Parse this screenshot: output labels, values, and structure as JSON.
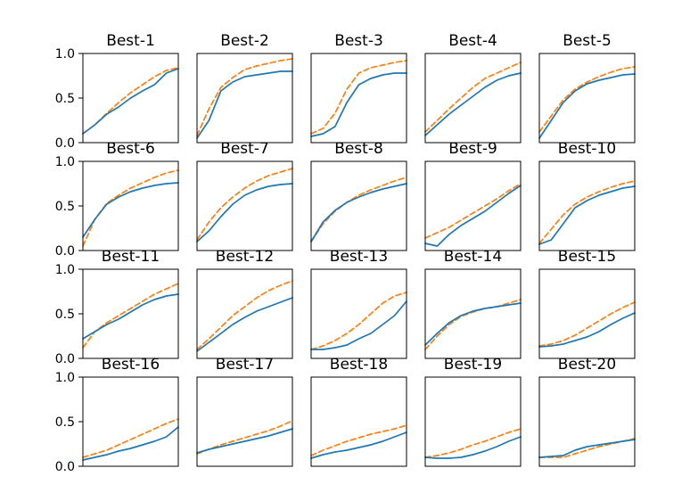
{
  "chart_data": {
    "type": "line",
    "layout": "small-multiples 4x5 grid",
    "x_axis": "hidden (no ticks or labels)",
    "ylim": [
      0,
      1
    ],
    "yticks": [
      "0.0",
      "0.5",
      "1.0"
    ],
    "grid": false,
    "legend": "none",
    "series_styles": [
      {
        "style": "solid",
        "color": "#1f77b4"
      },
      {
        "style": "dashed",
        "color": "#ff7f0e"
      }
    ],
    "panels": [
      {
        "title": "Best-1",
        "solid": [
          0.1,
          0.2,
          0.32,
          0.4,
          0.5,
          0.58,
          0.65,
          0.78,
          0.83
        ],
        "dashed": [
          0.1,
          0.2,
          0.33,
          0.45,
          0.56,
          0.65,
          0.74,
          0.81,
          0.84
        ]
      },
      {
        "title": "Best-2",
        "solid": [
          0.05,
          0.25,
          0.58,
          0.68,
          0.74,
          0.76,
          0.78,
          0.8,
          0.8
        ],
        "dashed": [
          0.08,
          0.38,
          0.62,
          0.73,
          0.82,
          0.86,
          0.89,
          0.92,
          0.94
        ]
      },
      {
        "title": "Best-3",
        "solid": [
          0.07,
          0.1,
          0.18,
          0.45,
          0.65,
          0.72,
          0.76,
          0.78,
          0.78
        ],
        "dashed": [
          0.1,
          0.16,
          0.33,
          0.6,
          0.78,
          0.84,
          0.87,
          0.9,
          0.92
        ]
      },
      {
        "title": "Best-4",
        "solid": [
          0.08,
          0.2,
          0.32,
          0.42,
          0.52,
          0.62,
          0.7,
          0.75,
          0.78
        ],
        "dashed": [
          0.12,
          0.25,
          0.38,
          0.5,
          0.62,
          0.72,
          0.78,
          0.84,
          0.9
        ]
      },
      {
        "title": "Best-5",
        "solid": [
          0.05,
          0.25,
          0.45,
          0.58,
          0.66,
          0.7,
          0.73,
          0.76,
          0.77
        ],
        "dashed": [
          0.12,
          0.3,
          0.48,
          0.6,
          0.68,
          0.74,
          0.79,
          0.83,
          0.85
        ]
      },
      {
        "title": "Best-6",
        "solid": [
          0.15,
          0.35,
          0.52,
          0.6,
          0.66,
          0.7,
          0.73,
          0.75,
          0.76
        ],
        "dashed": [
          0.05,
          0.35,
          0.53,
          0.62,
          0.7,
          0.76,
          0.82,
          0.87,
          0.9
        ]
      },
      {
        "title": "Best-7",
        "solid": [
          0.1,
          0.22,
          0.38,
          0.52,
          0.62,
          0.68,
          0.72,
          0.74,
          0.75
        ],
        "dashed": [
          0.12,
          0.32,
          0.48,
          0.6,
          0.7,
          0.78,
          0.84,
          0.88,
          0.92
        ]
      },
      {
        "title": "Best-8",
        "solid": [
          0.1,
          0.32,
          0.45,
          0.54,
          0.6,
          0.65,
          0.69,
          0.72,
          0.75
        ],
        "dashed": [
          0.1,
          0.3,
          0.44,
          0.54,
          0.62,
          0.68,
          0.73,
          0.78,
          0.82
        ]
      },
      {
        "title": "Best-9",
        "solid": [
          0.08,
          0.05,
          0.18,
          0.28,
          0.36,
          0.44,
          0.54,
          0.64,
          0.73
        ],
        "dashed": [
          0.14,
          0.2,
          0.26,
          0.34,
          0.42,
          0.5,
          0.58,
          0.67,
          0.75
        ]
      },
      {
        "title": "Best-10",
        "solid": [
          0.07,
          0.12,
          0.3,
          0.48,
          0.56,
          0.62,
          0.66,
          0.7,
          0.72
        ],
        "dashed": [
          0.08,
          0.24,
          0.4,
          0.52,
          0.6,
          0.66,
          0.71,
          0.75,
          0.78
        ]
      },
      {
        "title": "Best-11",
        "solid": [
          0.22,
          0.3,
          0.38,
          0.44,
          0.52,
          0.6,
          0.66,
          0.7,
          0.72
        ],
        "dashed": [
          0.12,
          0.3,
          0.4,
          0.48,
          0.56,
          0.64,
          0.72,
          0.78,
          0.84
        ]
      },
      {
        "title": "Best-12",
        "solid": [
          0.08,
          0.18,
          0.28,
          0.38,
          0.46,
          0.53,
          0.58,
          0.63,
          0.68
        ],
        "dashed": [
          0.1,
          0.22,
          0.35,
          0.48,
          0.58,
          0.68,
          0.76,
          0.82,
          0.87
        ]
      },
      {
        "title": "Best-13",
        "solid": [
          0.1,
          0.1,
          0.12,
          0.15,
          0.22,
          0.28,
          0.38,
          0.48,
          0.64
        ],
        "dashed": [
          0.1,
          0.14,
          0.2,
          0.28,
          0.38,
          0.5,
          0.62,
          0.7,
          0.74
        ]
      },
      {
        "title": "Best-14",
        "solid": [
          0.15,
          0.28,
          0.4,
          0.48,
          0.53,
          0.56,
          0.58,
          0.6,
          0.62
        ],
        "dashed": [
          0.1,
          0.25,
          0.38,
          0.47,
          0.52,
          0.56,
          0.58,
          0.62,
          0.66
        ]
      },
      {
        "title": "Best-15",
        "solid": [
          0.13,
          0.14,
          0.16,
          0.2,
          0.24,
          0.3,
          0.38,
          0.45,
          0.51
        ],
        "dashed": [
          0.14,
          0.16,
          0.2,
          0.26,
          0.34,
          0.42,
          0.5,
          0.57,
          0.63
        ]
      },
      {
        "title": "Best-16",
        "solid": [
          0.07,
          0.1,
          0.13,
          0.17,
          0.2,
          0.24,
          0.28,
          0.33,
          0.44
        ],
        "dashed": [
          0.1,
          0.14,
          0.18,
          0.24,
          0.3,
          0.36,
          0.42,
          0.48,
          0.53
        ]
      },
      {
        "title": "Best-17",
        "solid": [
          0.15,
          0.19,
          0.22,
          0.25,
          0.28,
          0.31,
          0.34,
          0.38,
          0.42
        ],
        "dashed": [
          0.14,
          0.19,
          0.24,
          0.28,
          0.32,
          0.36,
          0.4,
          0.45,
          0.51
        ]
      },
      {
        "title": "Best-18",
        "solid": [
          0.09,
          0.13,
          0.16,
          0.18,
          0.21,
          0.24,
          0.28,
          0.33,
          0.38
        ],
        "dashed": [
          0.12,
          0.18,
          0.23,
          0.28,
          0.32,
          0.36,
          0.39,
          0.42,
          0.46
        ]
      },
      {
        "title": "Best-19",
        "solid": [
          0.1,
          0.09,
          0.09,
          0.1,
          0.13,
          0.17,
          0.22,
          0.28,
          0.33
        ],
        "dashed": [
          0.1,
          0.12,
          0.15,
          0.19,
          0.24,
          0.28,
          0.33,
          0.38,
          0.42
        ]
      },
      {
        "title": "Best-20",
        "solid": [
          0.1,
          0.11,
          0.12,
          0.18,
          0.22,
          0.24,
          0.26,
          0.28,
          0.3
        ],
        "dashed": [
          0.1,
          0.1,
          0.1,
          0.14,
          0.18,
          0.22,
          0.25,
          0.28,
          0.31
        ]
      }
    ]
  }
}
